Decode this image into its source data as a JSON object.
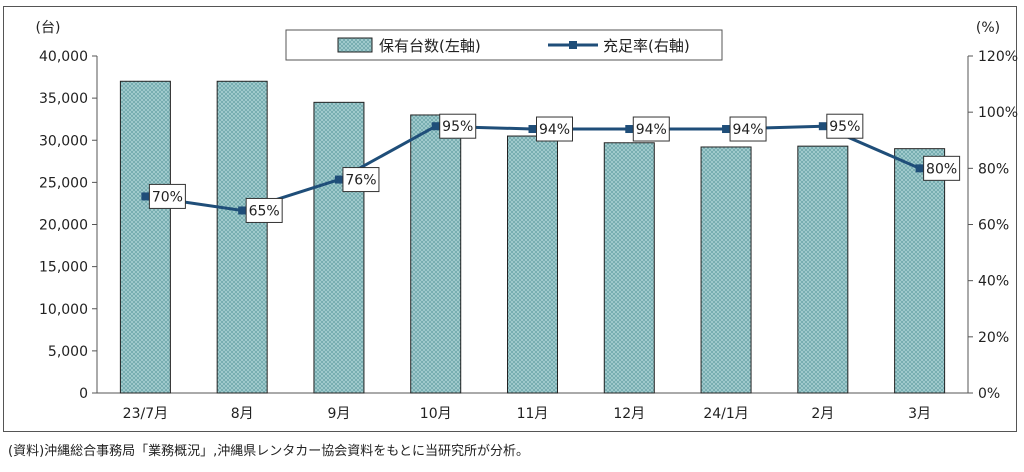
{
  "chart_data": {
    "type": "bar",
    "categories": [
      "23/7月",
      "8月",
      "9月",
      "10月",
      "11月",
      "12月",
      "24/1月",
      "2月",
      "3月"
    ],
    "series": [
      {
        "name": "保有台数(左軸)",
        "type": "bar",
        "axis": "left",
        "values": [
          37000,
          37000,
          34500,
          33000,
          30500,
          29700,
          29200,
          29300,
          29000
        ]
      },
      {
        "name": "充足率(右軸)",
        "type": "line",
        "axis": "right",
        "values": [
          70,
          65,
          76,
          95,
          94,
          94,
          94,
          95,
          80
        ],
        "labels": [
          "70%",
          "65%",
          "76%",
          "95%",
          "94%",
          "94%",
          "94%",
          "95%",
          "80%"
        ]
      }
    ],
    "y_left": {
      "unit": "(台)",
      "ylim": [
        0,
        40000
      ],
      "ticks": [
        "0",
        "5,000",
        "10,000",
        "15,000",
        "20,000",
        "25,000",
        "30,000",
        "35,000",
        "40,000"
      ]
    },
    "y_right": {
      "unit": "(%)",
      "ylim": [
        0,
        120
      ],
      "ticks": [
        "0%",
        "20%",
        "40%",
        "60%",
        "80%",
        "100%",
        "120%"
      ]
    },
    "legend_position": "top-center",
    "grid": false,
    "colors": {
      "bar_fill": "#a9d1d3",
      "bar_hatch": "#6fa7ab",
      "bar_border": "#222222",
      "line": "#1f4e79"
    }
  },
  "source_note": "(資料)沖縄総合事務局「業務概況」,沖縄県レンタカー協会資料をもとに当研究所が分析。"
}
